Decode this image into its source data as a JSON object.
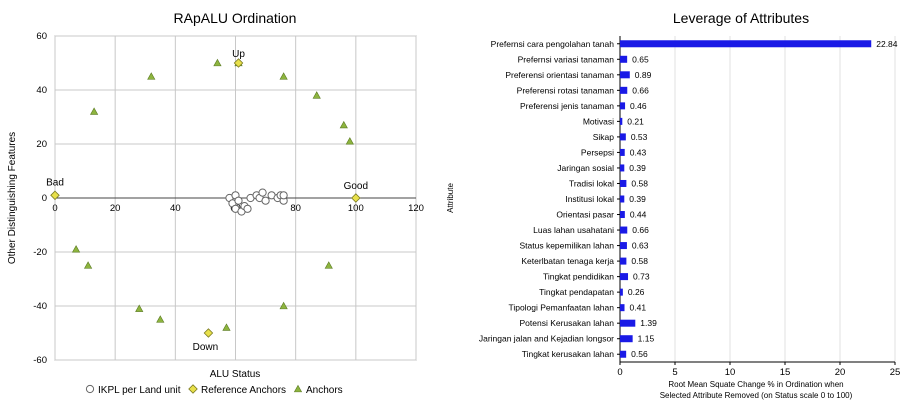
{
  "chart_data": [
    {
      "type": "scatter",
      "title": "RApALU Ordination",
      "xlabel": "ALU Status",
      "ylabel": "Other Distinguishing Features",
      "xlim": [
        0,
        120
      ],
      "ylim": [
        -60,
        60
      ],
      "xticks": [
        0,
        20,
        40,
        60,
        80,
        100,
        120
      ],
      "yticks": [
        -60,
        -40,
        -20,
        0,
        20,
        40,
        60
      ],
      "grid": true,
      "legend_position": "bottom",
      "series": [
        {
          "name": "IKPL per Land unit",
          "marker": "circle",
          "color": "#ffffff",
          "points": [
            [
              58,
              0
            ],
            [
              59,
              -2
            ],
            [
              60,
              1
            ],
            [
              60,
              -4
            ],
            [
              61,
              -1
            ],
            [
              62,
              -5
            ],
            [
              63,
              -3
            ],
            [
              64,
              -4
            ],
            [
              65,
              0
            ],
            [
              67,
              1
            ],
            [
              68,
              0
            ],
            [
              69,
              2
            ],
            [
              70,
              -1
            ],
            [
              72,
              1
            ],
            [
              74,
              0
            ],
            [
              75,
              1
            ],
            [
              76,
              -1
            ],
            [
              76,
              1
            ]
          ]
        },
        {
          "name": "Reference Anchors",
          "marker": "diamond",
          "color": "#e8e04a",
          "points": [
            [
              0,
              1
            ],
            [
              100,
              0
            ],
            [
              61,
              50
            ],
            [
              51,
              -50
            ]
          ]
        },
        {
          "name": "Anchors",
          "marker": "triangle",
          "color": "#8db43e",
          "points": [
            [
              13,
              32
            ],
            [
              32,
              45
            ],
            [
              54,
              50
            ],
            [
              61,
              50
            ],
            [
              76,
              45
            ],
            [
              87,
              38
            ],
            [
              96,
              27
            ],
            [
              98,
              21
            ],
            [
              7,
              -19
            ],
            [
              11,
              -25
            ],
            [
              28,
              -41
            ],
            [
              35,
              -45
            ],
            [
              57,
              -48
            ],
            [
              76,
              -40
            ],
            [
              91,
              -25
            ]
          ]
        }
      ],
      "annotations": [
        {
          "text": "Up",
          "x": 61,
          "y": 50
        },
        {
          "text": "Down",
          "x": 51,
          "y": -50
        },
        {
          "text": "Bad",
          "x": 0,
          "y": 1
        },
        {
          "text": "Good",
          "x": 100,
          "y": 0
        }
      ]
    },
    {
      "type": "bar",
      "orientation": "horizontal",
      "title": "Leverage of Attributes",
      "xlabel": "Root Mean Squate Change % in Ordination when Selected Attribute Removed (on Status scale 0 to 100)",
      "ylabel": "Attribute",
      "xlim": [
        0,
        25
      ],
      "xticks": [
        0,
        5,
        10,
        15,
        20,
        25
      ],
      "xtick_labels": [
        "0",
        "5",
        "10",
        "15",
        "20",
        "25"
      ],
      "bar_color": "#1a1ae6",
      "categories": [
        "Prefernsi cara pengolahan tanah",
        "Prefernsi variasi tanaman",
        "Preferensi orientasi tanaman",
        "Preferensi rotasi tanaman",
        "Preferensi jenis tanaman",
        "Motivasi",
        "Sikap",
        "Persepsi",
        "Jaringan sosial",
        "Tradisi lokal",
        "Institusi lokal",
        "Orientasi pasar",
        "Luas lahan usahatani",
        "Status kepemilikan lahan",
        "Keterlbatan tenaga kerja",
        "Tingkat pendidikan",
        "Tingkat pendapatan",
        "Tipologi Pemanfaatan lahan",
        "Potensi Kerusakan lahan",
        "Jaringan jalan and Kejadian longsor",
        "Tingkat kerusakan lahan"
      ],
      "values": [
        22.84,
        0.65,
        0.89,
        0.66,
        0.46,
        0.21,
        0.53,
        0.43,
        0.39,
        0.58,
        0.39,
        0.44,
        0.66,
        0.63,
        0.58,
        0.73,
        0.26,
        0.41,
        1.39,
        1.15,
        0.56
      ],
      "value_labels": [
        "22.84",
        "0.65",
        "0.89",
        "0.66",
        "0.46",
        "0.21",
        "0.53",
        "0.43",
        "0.39",
        "0.58",
        "0.39",
        "0.44",
        "0.66",
        "0.63",
        "0.58",
        "0.73",
        "0.26",
        "0.41",
        "1.39",
        "1.15",
        "0.56"
      ]
    }
  ]
}
